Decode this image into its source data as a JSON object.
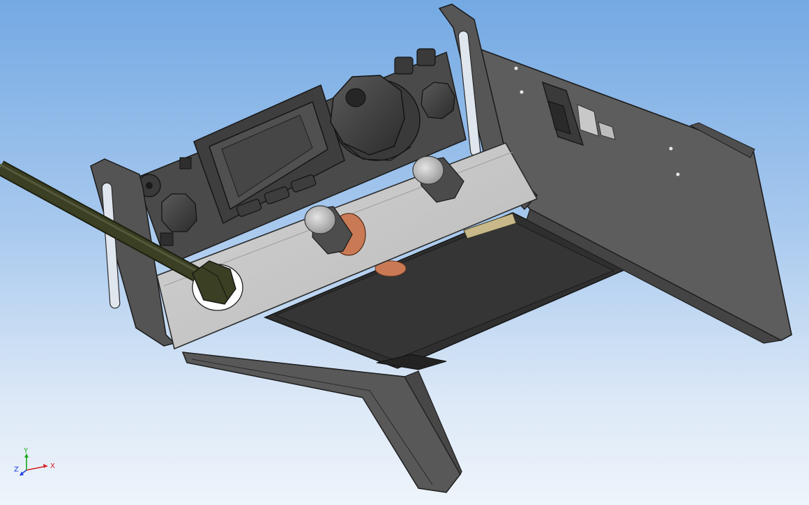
{
  "viewport": {
    "background_top": "#74a9e3",
    "background_bottom": "#eef4fb"
  },
  "model": {
    "body_color": "#5b5b5b",
    "face_plate_color": "#c7c7c7",
    "cable_color": "#3b3f23",
    "copper_color": "#c97a55"
  },
  "triad": {
    "x_label": "X",
    "y_label": "Y",
    "z_label": "Z",
    "x_color": "#d42020",
    "y_color": "#18a818",
    "z_color": "#1f3fe0"
  }
}
